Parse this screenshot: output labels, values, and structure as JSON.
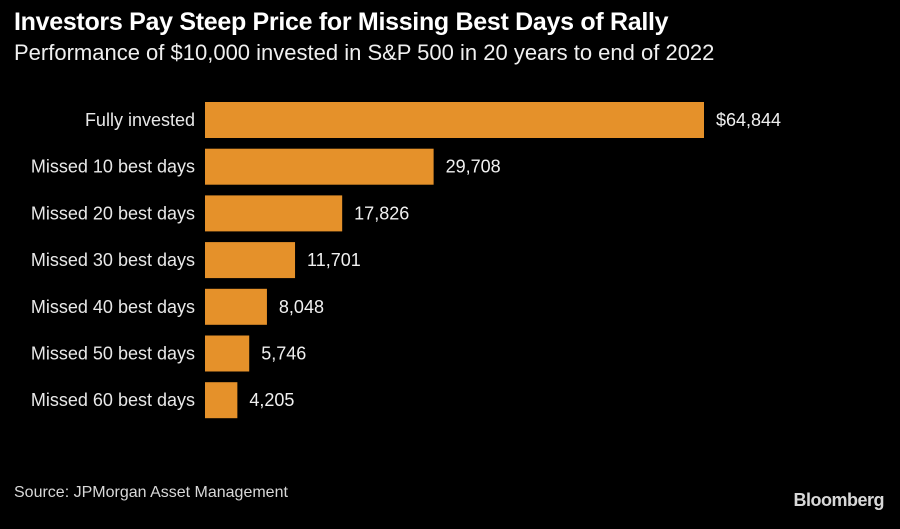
{
  "chart_data": {
    "type": "bar",
    "orientation": "horizontal",
    "title": "Investors Pay Steep Price for Missing Best Days of Rally",
    "subtitle": "Performance of $10,000 invested in S&P 500 in 20 years to end of 2022",
    "categories": [
      "Fully invested",
      "Missed 10 best days",
      "Missed 20 best days",
      "Missed 30 best days",
      "Missed 40 best days",
      "Missed 50 best days",
      "Missed 60 best days"
    ],
    "values": [
      64844,
      29708,
      17826,
      11701,
      8048,
      5746,
      4205
    ],
    "data_labels": [
      "$64,844",
      "29,708",
      "17,826",
      "11,701",
      "8,048",
      "5,746",
      "4,205"
    ],
    "bar_color": "#e5912a",
    "grid": false
  },
  "source": "Source: JPMorgan Asset Management",
  "logo": "Bloomberg"
}
